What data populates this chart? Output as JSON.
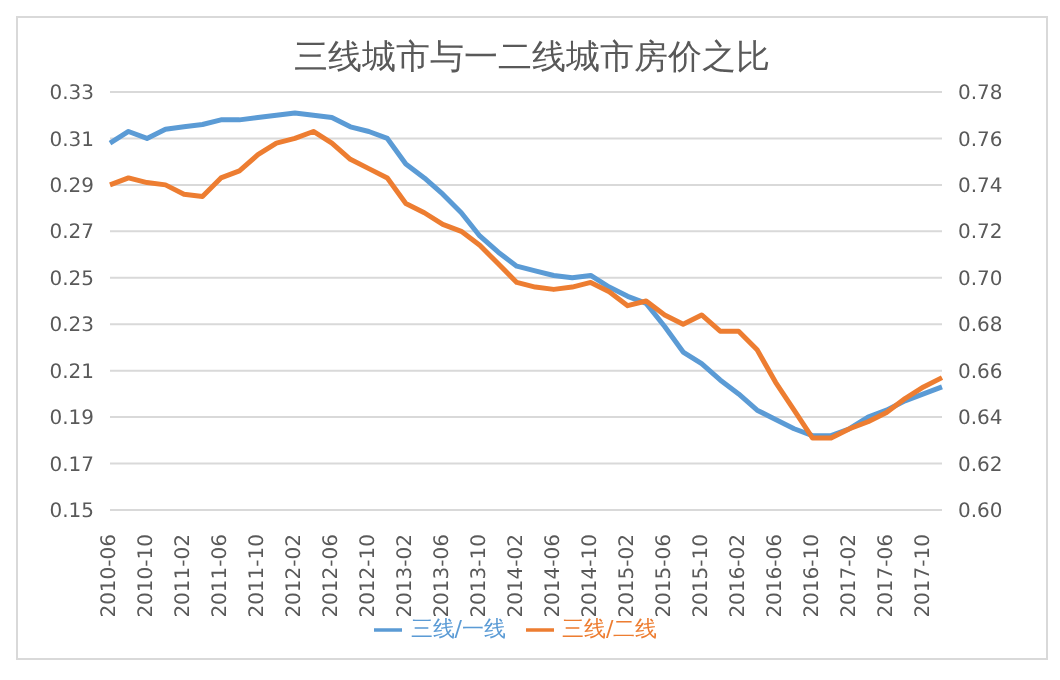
{
  "chart_data": {
    "type": "line",
    "title": "三线城市与一二线城市房价之比",
    "categories": [
      "2010-06",
      null,
      "2010-10",
      null,
      "2011-02",
      null,
      "2011-06",
      null,
      "2011-10",
      null,
      "2012-02",
      null,
      "2012-06",
      null,
      "2012-10",
      null,
      "2013-02",
      null,
      "2013-06",
      null,
      "2013-10",
      null,
      "2014-02",
      null,
      "2014-06",
      null,
      "2014-10",
      null,
      "2015-02",
      null,
      "2015-06",
      null,
      "2015-10",
      null,
      "2016-02",
      null,
      "2016-06",
      null,
      "2016-10",
      null,
      "2017-02",
      null,
      "2017-06",
      null,
      "2017-10",
      null
    ],
    "series": [
      {
        "name": "三线/一线",
        "color": "#5b9bd5",
        "values": [
          0.308,
          0.313,
          0.31,
          0.314,
          0.315,
          0.316,
          0.318,
          0.318,
          0.319,
          0.32,
          0.321,
          0.32,
          0.319,
          0.315,
          0.313,
          0.31,
          0.299,
          0.293,
          0.286,
          0.278,
          0.268,
          0.261,
          0.255,
          0.253,
          0.251,
          0.25,
          0.251,
          0.246,
          0.242,
          0.239,
          0.229,
          0.218,
          0.213,
          0.206,
          0.2,
          0.193,
          0.189,
          0.185,
          0.182,
          0.182,
          0.185,
          0.19,
          0.193,
          0.197,
          0.2,
          0.203
        ]
      },
      {
        "name": "三线/二线",
        "color": "#ed7d31",
        "axis": "y2",
        "values": [
          0.74,
          0.743,
          0.741,
          0.74,
          0.736,
          0.735,
          0.743,
          0.746,
          0.753,
          0.758,
          0.76,
          0.763,
          0.758,
          0.751,
          0.747,
          0.743,
          0.732,
          0.728,
          0.723,
          0.72,
          0.714,
          0.706,
          0.698,
          0.696,
          0.695,
          0.696,
          0.698,
          0.694,
          0.688,
          0.69,
          0.684,
          0.68,
          0.684,
          0.677,
          0.677,
          0.669,
          0.655,
          0.643,
          0.631,
          0.631,
          0.635,
          0.638,
          0.642,
          0.648,
          0.653,
          0.657
        ]
      }
    ],
    "ylim": [
      0.15,
      0.33
    ],
    "yticks": [
      0.15,
      0.17,
      0.19,
      0.21,
      0.23,
      0.25,
      0.27,
      0.29,
      0.31,
      0.33
    ],
    "y2lim": [
      0.6,
      0.78
    ],
    "y2ticks": [
      {
        "value": 0.6,
        "label": "0.60"
      },
      0.62,
      0.64,
      0.66,
      0.68,
      {
        "value": 0.7,
        "label": "0.70"
      },
      0.72,
      0.74,
      0.76,
      0.78
    ],
    "grid": "y",
    "legend": "bottom",
    "marker": "none",
    "line_style": "solid"
  }
}
